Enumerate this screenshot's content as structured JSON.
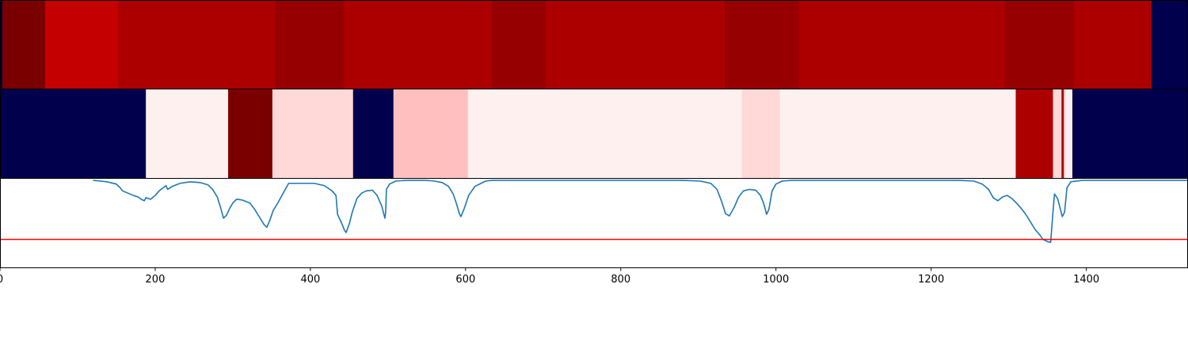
{
  "chart_data": [
    {
      "type": "heatmap",
      "xlim": [
        0,
        1530
      ],
      "colormap": "seismic",
      "segments": [
        {
          "x0": 0,
          "x1": 3,
          "color": "#00004c"
        },
        {
          "x0": 3,
          "x1": 58,
          "color": "#7a0000"
        },
        {
          "x0": 58,
          "x1": 152,
          "color": "#c40000"
        },
        {
          "x0": 152,
          "x1": 355,
          "color": "#ac0000"
        },
        {
          "x0": 355,
          "x1": 443,
          "color": "#960000"
        },
        {
          "x0": 443,
          "x1": 634,
          "color": "#ac0000"
        },
        {
          "x0": 634,
          "x1": 703,
          "color": "#960000"
        },
        {
          "x0": 703,
          "x1": 934,
          "color": "#ac0000"
        },
        {
          "x0": 934,
          "x1": 1029,
          "color": "#960000"
        },
        {
          "x0": 1029,
          "x1": 1295,
          "color": "#ac0000"
        },
        {
          "x0": 1295,
          "x1": 1384,
          "color": "#960000"
        },
        {
          "x0": 1384,
          "x1": 1484,
          "color": "#ac0000"
        },
        {
          "x0": 1484,
          "x1": 1530,
          "color": "#00004c"
        }
      ]
    },
    {
      "type": "heatmap",
      "xlim": [
        0,
        1530
      ],
      "colormap": "seismic",
      "segments": [
        {
          "x0": 0,
          "x1": 188,
          "color": "#00004c"
        },
        {
          "x0": 188,
          "x1": 294,
          "color": "#fff0f0"
        },
        {
          "x0": 294,
          "x1": 351,
          "color": "#7a0000"
        },
        {
          "x0": 351,
          "x1": 455,
          "color": "#ffd8d8"
        },
        {
          "x0": 455,
          "x1": 507,
          "color": "#00004c"
        },
        {
          "x0": 507,
          "x1": 603,
          "color": "#ffbfbf"
        },
        {
          "x0": 603,
          "x1": 956,
          "color": "#fff0f0"
        },
        {
          "x0": 956,
          "x1": 1005,
          "color": "#ffd8d8"
        },
        {
          "x0": 1005,
          "x1": 1309,
          "color": "#fff0f0"
        },
        {
          "x0": 1309,
          "x1": 1357,
          "color": "#ac0000"
        },
        {
          "x0": 1357,
          "x1": 1368,
          "color": "#ffd8d8"
        },
        {
          "x0": 1368,
          "x1": 1371,
          "color": "#ac0000"
        },
        {
          "x0": 1371,
          "x1": 1373,
          "color": "#ffd8d8"
        },
        {
          "x0": 1373,
          "x1": 1382,
          "color": "#fff0f0"
        },
        {
          "x0": 1382,
          "x1": 1530,
          "color": "#00004c"
        }
      ]
    },
    {
      "type": "line",
      "xlim": [
        0,
        1530
      ],
      "ylim": [
        -0.15,
        1.02
      ],
      "grid": false,
      "threshold": {
        "y": 0.22,
        "color": "#ff0000"
      },
      "x_ticks": [
        {
          "value": 0,
          "label": "0"
        },
        {
          "value": 200,
          "label": "200"
        },
        {
          "value": 400,
          "label": "400"
        },
        {
          "value": 600,
          "label": "600"
        },
        {
          "value": 800,
          "label": "800"
        },
        {
          "value": 1000,
          "label": "1000"
        },
        {
          "value": 1200,
          "label": "1200"
        },
        {
          "value": 1400,
          "label": "1400"
        }
      ],
      "series": [
        {
          "color": "#1f77b4",
          "points": [
            [
              120,
              1.0
            ],
            [
              138,
              0.98
            ],
            [
              150,
              0.95
            ],
            [
              155,
              0.9
            ],
            [
              158,
              0.86
            ],
            [
              165,
              0.83
            ],
            [
              172,
              0.8
            ],
            [
              178,
              0.78
            ],
            [
              182,
              0.75
            ],
            [
              186,
              0.73
            ],
            [
              188,
              0.77
            ],
            [
              194,
              0.75
            ],
            [
              200,
              0.8
            ],
            [
              205,
              0.86
            ],
            [
              210,
              0.9
            ],
            [
              214,
              0.93
            ],
            [
              216,
              0.88
            ],
            [
              222,
              0.92
            ],
            [
              232,
              0.96
            ],
            [
              245,
              0.98
            ],
            [
              258,
              0.97
            ],
            [
              268,
              0.94
            ],
            [
              274,
              0.88
            ],
            [
              280,
              0.78
            ],
            [
              284,
              0.65
            ],
            [
              288,
              0.5
            ],
            [
              292,
              0.54
            ],
            [
              296,
              0.63
            ],
            [
              300,
              0.7
            ],
            [
              305,
              0.75
            ],
            [
              312,
              0.74
            ],
            [
              322,
              0.7
            ],
            [
              328,
              0.62
            ],
            [
              334,
              0.52
            ],
            [
              340,
              0.42
            ],
            [
              344,
              0.38
            ],
            [
              348,
              0.48
            ],
            [
              352,
              0.6
            ],
            [
              358,
              0.7
            ],
            [
              366,
              0.85
            ],
            [
              372,
              0.96
            ],
            [
              390,
              0.96
            ],
            [
              405,
              0.96
            ],
            [
              418,
              0.93
            ],
            [
              428,
              0.86
            ],
            [
              433,
              0.8
            ],
            [
              435,
              0.55
            ],
            [
              440,
              0.44
            ],
            [
              444,
              0.34
            ],
            [
              446,
              0.31
            ],
            [
              450,
              0.42
            ],
            [
              454,
              0.58
            ],
            [
              460,
              0.76
            ],
            [
              466,
              0.83
            ],
            [
              472,
              0.86
            ],
            [
              480,
              0.87
            ],
            [
              486,
              0.8
            ],
            [
              492,
              0.66
            ],
            [
              496,
              0.5
            ],
            [
              497,
              0.58
            ],
            [
              498,
              0.88
            ],
            [
              502,
              0.95
            ],
            [
              510,
              0.99
            ],
            [
              525,
              1.0
            ],
            [
              548,
              1.0
            ],
            [
              560,
              0.99
            ],
            [
              570,
              0.97
            ],
            [
              578,
              0.92
            ],
            [
              584,
              0.82
            ],
            [
              588,
              0.7
            ],
            [
              592,
              0.56
            ],
            [
              594,
              0.52
            ],
            [
              598,
              0.62
            ],
            [
              604,
              0.8
            ],
            [
              612,
              0.92
            ],
            [
              620,
              0.96
            ],
            [
              626,
              0.99
            ],
            [
              634,
              1.0
            ],
            [
              880,
              1.0
            ],
            [
              902,
              0.99
            ],
            [
              916,
              0.96
            ],
            [
              924,
              0.88
            ],
            [
              930,
              0.72
            ],
            [
              935,
              0.56
            ],
            [
              940,
              0.53
            ],
            [
              946,
              0.64
            ],
            [
              952,
              0.78
            ],
            [
              958,
              0.86
            ],
            [
              966,
              0.88
            ],
            [
              974,
              0.87
            ],
            [
              980,
              0.8
            ],
            [
              984,
              0.7
            ],
            [
              988,
              0.55
            ],
            [
              991,
              0.62
            ],
            [
              995,
              0.86
            ],
            [
              1000,
              0.95
            ],
            [
              1008,
              0.99
            ],
            [
              1020,
              1.0
            ],
            [
              1235,
              1.0
            ],
            [
              1255,
              0.99
            ],
            [
              1266,
              0.95
            ],
            [
              1274,
              0.88
            ],
            [
              1280,
              0.77
            ],
            [
              1286,
              0.73
            ],
            [
              1292,
              0.78
            ],
            [
              1298,
              0.8
            ],
            [
              1304,
              0.76
            ],
            [
              1310,
              0.7
            ],
            [
              1316,
              0.63
            ],
            [
              1322,
              0.55
            ],
            [
              1328,
              0.45
            ],
            [
              1334,
              0.35
            ],
            [
              1340,
              0.28
            ],
            [
              1344,
              0.22
            ],
            [
              1350,
              0.19
            ],
            [
              1354,
              0.18
            ],
            [
              1357,
              0.58
            ],
            [
              1359,
              0.82
            ],
            [
              1363,
              0.76
            ],
            [
              1367,
              0.6
            ],
            [
              1369,
              0.52
            ],
            [
              1372,
              0.58
            ],
            [
              1375,
              0.9
            ],
            [
              1380,
              0.98
            ],
            [
              1395,
              1.0
            ],
            [
              1530,
              1.0
            ]
          ]
        }
      ]
    }
  ]
}
